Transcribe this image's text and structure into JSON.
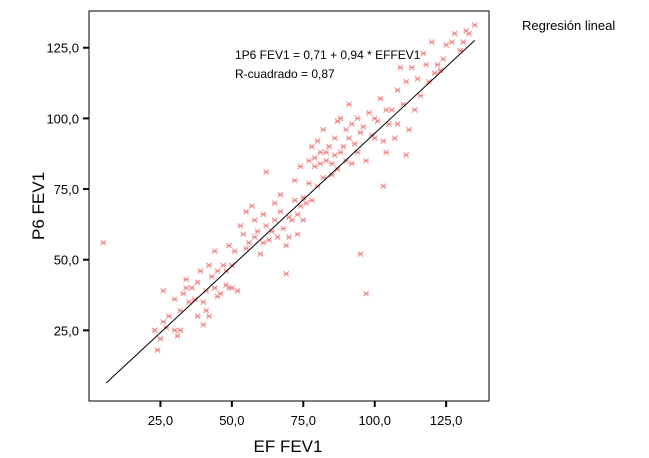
{
  "chart_data": {
    "type": "scatter",
    "title": "",
    "xlabel": "EF FEV1",
    "ylabel": "P6 FEV1",
    "xlim": [
      0,
      140
    ],
    "ylim": [
      0,
      138
    ],
    "xticks": [
      25,
      50,
      75,
      100,
      125
    ],
    "xtick_labels": [
      "25,0",
      "50,0",
      "75,0",
      "100,0",
      "125,0"
    ],
    "yticks": [
      25,
      50,
      75,
      100,
      125
    ],
    "ytick_labels": [
      "25,0",
      "50,0",
      "75,0",
      "100,0",
      "125,0"
    ],
    "grid": false,
    "legend_position": "top-right",
    "legend_label": "Regresión lineal",
    "annotations": [
      "1P6 FEV1 = 0,71 + 0,94 * EFFEV1",
      "R-cuadrado = 0,87"
    ],
    "marker_color": "#f08080",
    "line_color": "#000000",
    "regression": {
      "intercept": 0.71,
      "slope": 0.94,
      "x_range": [
        6,
        135
      ]
    },
    "points": [
      [
        5,
        56
      ],
      [
        23,
        25
      ],
      [
        24,
        18
      ],
      [
        25,
        22
      ],
      [
        26,
        28
      ],
      [
        26,
        39
      ],
      [
        27,
        26
      ],
      [
        28,
        30
      ],
      [
        30,
        25
      ],
      [
        30,
        36
      ],
      [
        31,
        23
      ],
      [
        32,
        25
      ],
      [
        32,
        32
      ],
      [
        33,
        38
      ],
      [
        34,
        40
      ],
      [
        34,
        43
      ],
      [
        35,
        35
      ],
      [
        36,
        40
      ],
      [
        37,
        36
      ],
      [
        38,
        30
      ],
      [
        38,
        42
      ],
      [
        39,
        46
      ],
      [
        40,
        27
      ],
      [
        40,
        35
      ],
      [
        41,
        32
      ],
      [
        41,
        39
      ],
      [
        42,
        48
      ],
      [
        42,
        30
      ],
      [
        43,
        44
      ],
      [
        44,
        53
      ],
      [
        44,
        40
      ],
      [
        45,
        46
      ],
      [
        45,
        37
      ],
      [
        46,
        38
      ],
      [
        47,
        48
      ],
      [
        48,
        46
      ],
      [
        48,
        41
      ],
      [
        49,
        55
      ],
      [
        49,
        40
      ],
      [
        50,
        48
      ],
      [
        50,
        40
      ],
      [
        51,
        53
      ],
      [
        52,
        39
      ],
      [
        53,
        62
      ],
      [
        54,
        59
      ],
      [
        55,
        67
      ],
      [
        55,
        54
      ],
      [
        56,
        56
      ],
      [
        57,
        69
      ],
      [
        58,
        58
      ],
      [
        58,
        64
      ],
      [
        59,
        60
      ],
      [
        60,
        52
      ],
      [
        61,
        56
      ],
      [
        61,
        66
      ],
      [
        62,
        81
      ],
      [
        62,
        62
      ],
      [
        63,
        57
      ],
      [
        64,
        60
      ],
      [
        65,
        70
      ],
      [
        65,
        64
      ],
      [
        66,
        58
      ],
      [
        67,
        73
      ],
      [
        67,
        67
      ],
      [
        68,
        61
      ],
      [
        69,
        55
      ],
      [
        69,
        45
      ],
      [
        70,
        65
      ],
      [
        70,
        58
      ],
      [
        71,
        64
      ],
      [
        72,
        71
      ],
      [
        72,
        78
      ],
      [
        73,
        66
      ],
      [
        73,
        59
      ],
      [
        74,
        69
      ],
      [
        74,
        83
      ],
      [
        75,
        72
      ],
      [
        75,
        64
      ],
      [
        76,
        70
      ],
      [
        77,
        85
      ],
      [
        77,
        77
      ],
      [
        78,
        71
      ],
      [
        78,
        90
      ],
      [
        79,
        83
      ],
      [
        79,
        86
      ],
      [
        80,
        92
      ],
      [
        80,
        76
      ],
      [
        81,
        84
      ],
      [
        81,
        88
      ],
      [
        82,
        79
      ],
      [
        82,
        96
      ],
      [
        83,
        88
      ],
      [
        83,
        85
      ],
      [
        84,
        90
      ],
      [
        85,
        84
      ],
      [
        85,
        80
      ],
      [
        86,
        93
      ],
      [
        86,
        87
      ],
      [
        87,
        99
      ],
      [
        87,
        82
      ],
      [
        88,
        100
      ],
      [
        88,
        88
      ],
      [
        89,
        90
      ],
      [
        90,
        96
      ],
      [
        90,
        85
      ],
      [
        91,
        105
      ],
      [
        91,
        93
      ],
      [
        92,
        98
      ],
      [
        92,
        84
      ],
      [
        93,
        91
      ],
      [
        94,
        100
      ],
      [
        94,
        88
      ],
      [
        95,
        95
      ],
      [
        95,
        52
      ],
      [
        96,
        97
      ],
      [
        97,
        85
      ],
      [
        97,
        38
      ],
      [
        98,
        102
      ],
      [
        99,
        94
      ],
      [
        100,
        100
      ],
      [
        100,
        93
      ],
      [
        101,
        99
      ],
      [
        102,
        107
      ],
      [
        103,
        92
      ],
      [
        103,
        76
      ],
      [
        104,
        88
      ],
      [
        104,
        103
      ],
      [
        105,
        98
      ],
      [
        106,
        103
      ],
      [
        107,
        93
      ],
      [
        108,
        110
      ],
      [
        108,
        98
      ],
      [
        109,
        118
      ],
      [
        110,
        105
      ],
      [
        111,
        113
      ],
      [
        111,
        87
      ],
      [
        112,
        96
      ],
      [
        113,
        118
      ],
      [
        114,
        103
      ],
      [
        115,
        114
      ],
      [
        116,
        108
      ],
      [
        117,
        123
      ],
      [
        118,
        119
      ],
      [
        119,
        113
      ],
      [
        120,
        127
      ],
      [
        121,
        116
      ],
      [
        122,
        119
      ],
      [
        123,
        117
      ],
      [
        124,
        121
      ],
      [
        125,
        126
      ],
      [
        127,
        127
      ],
      [
        128,
        130
      ],
      [
        130,
        124
      ],
      [
        131,
        127
      ],
      [
        132,
        131
      ],
      [
        133,
        130
      ],
      [
        135,
        133
      ]
    ]
  }
}
